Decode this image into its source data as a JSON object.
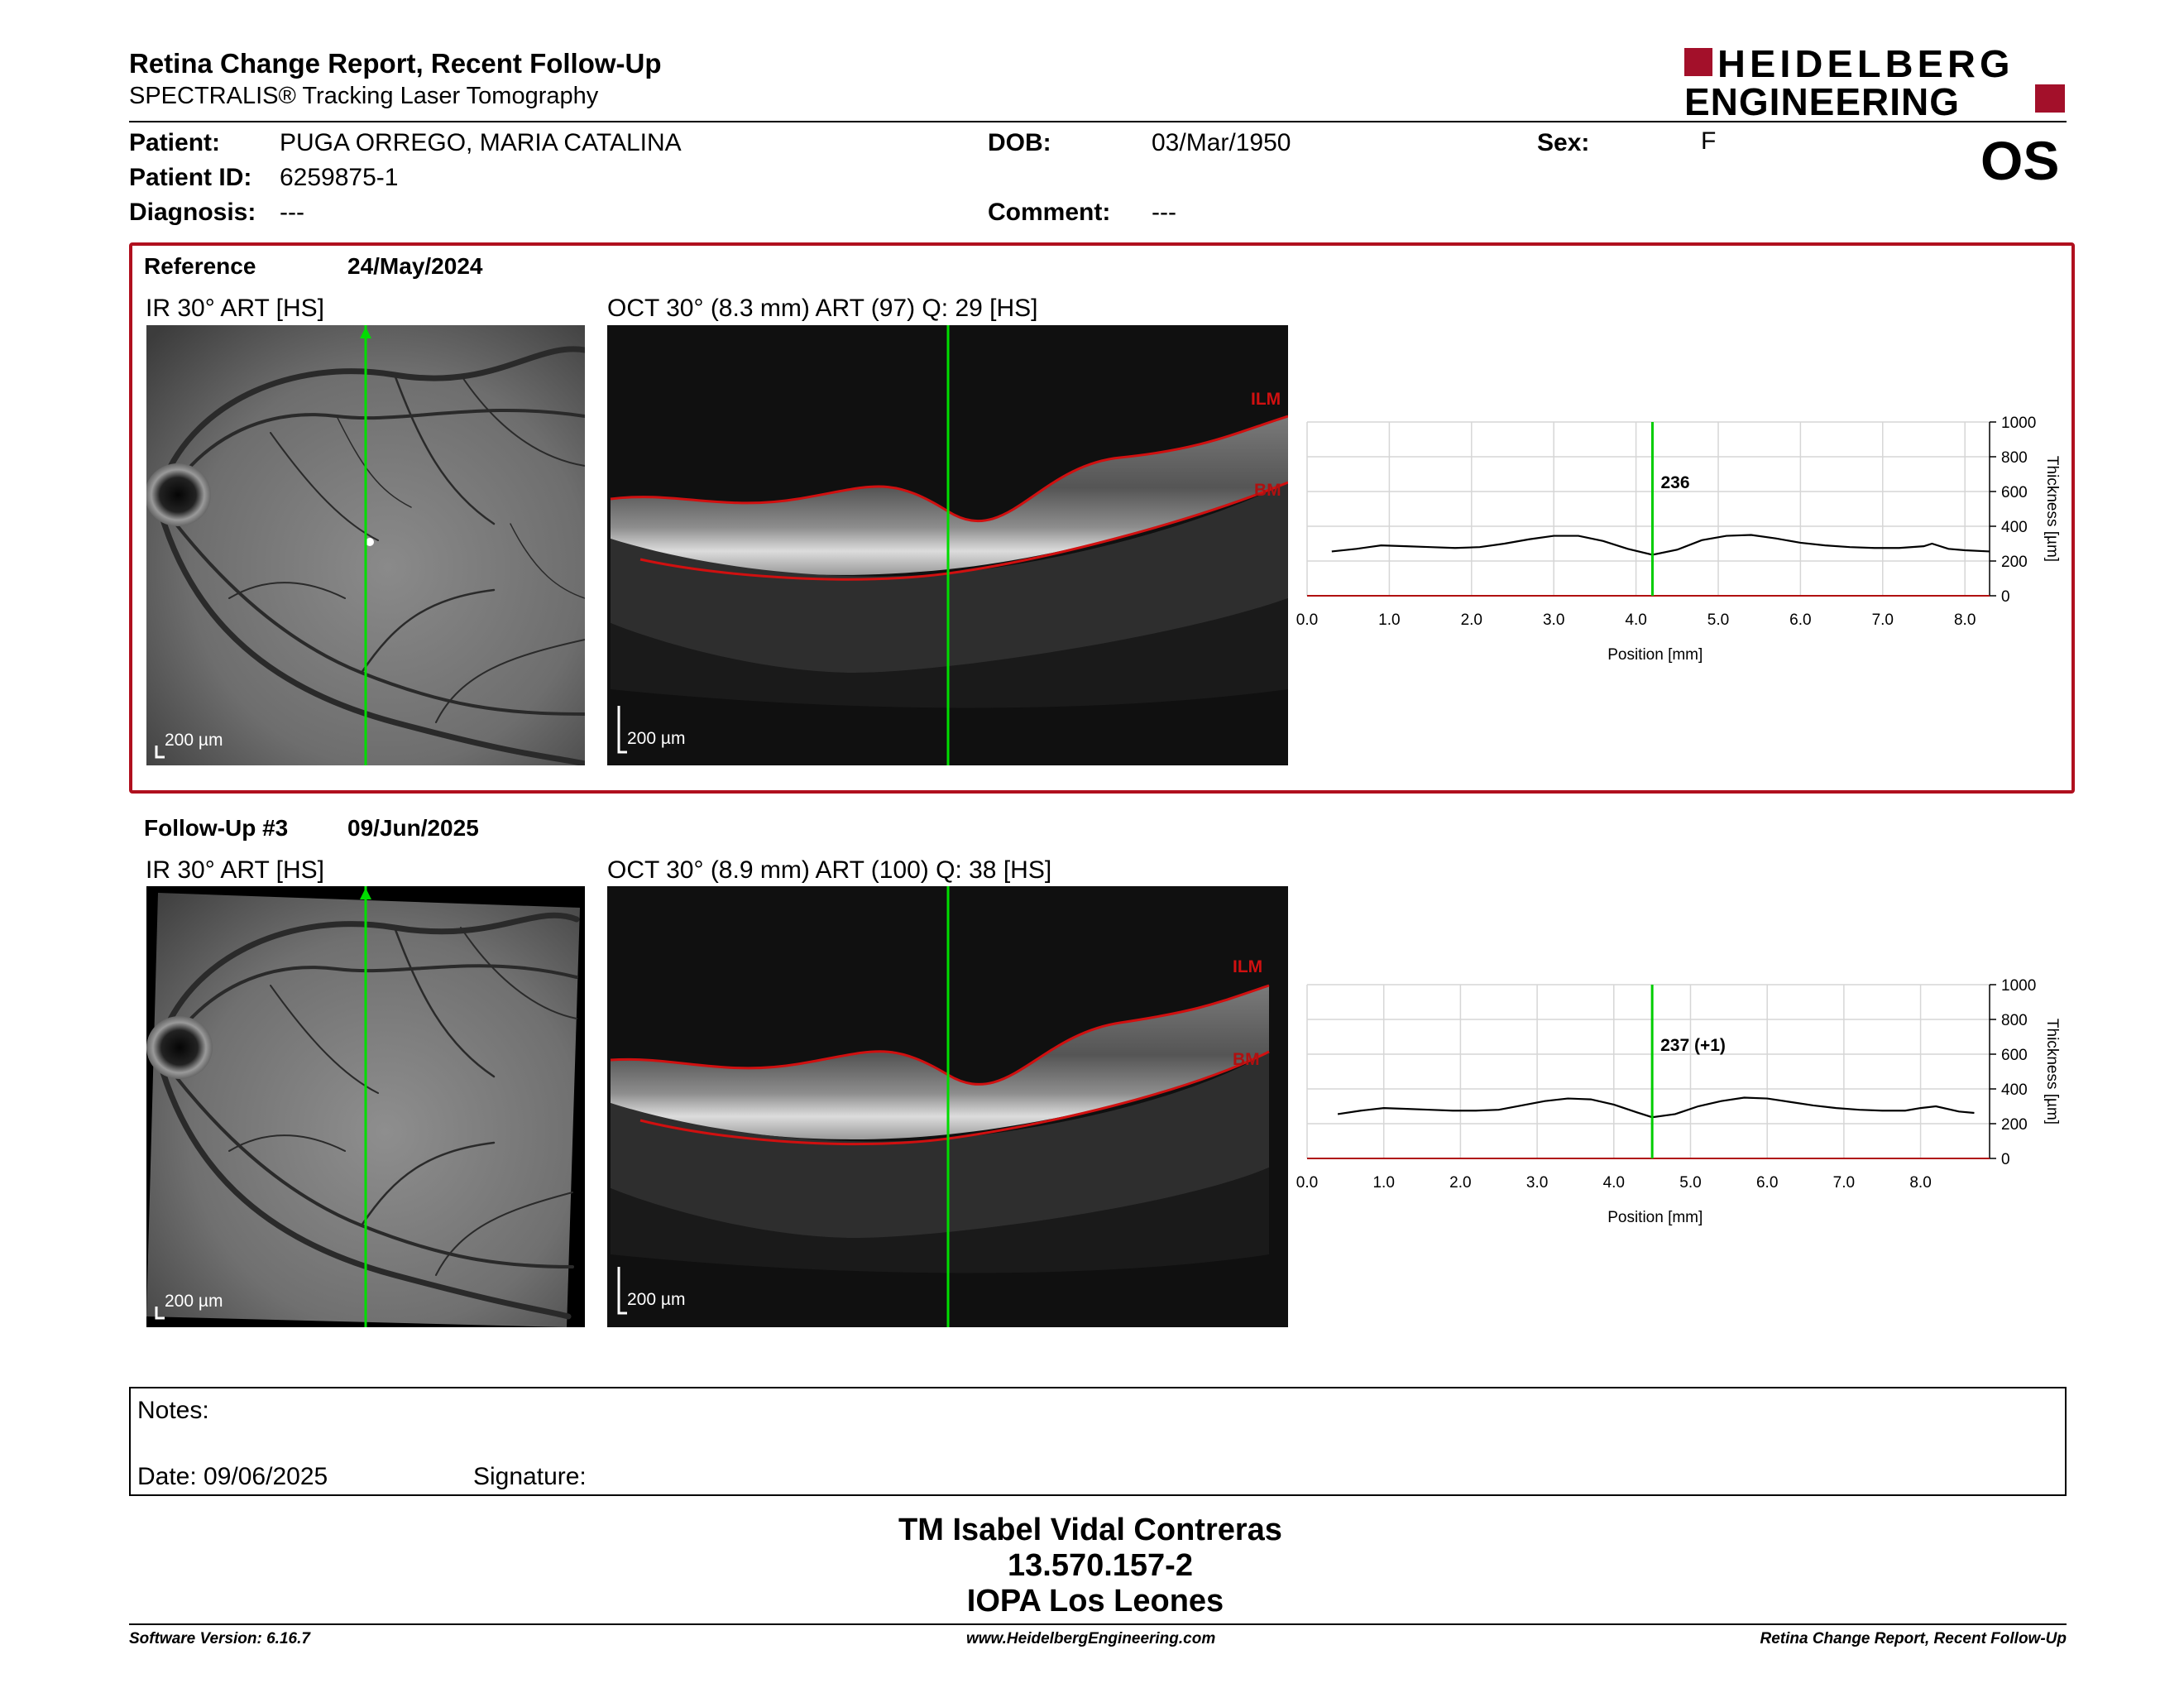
{
  "header": {
    "title": "Retina Change Report, Recent Follow-Up",
    "subtitle": "SPECTRALIS® Tracking Laser Tomography",
    "logo_line1": "HEIDELBERG",
    "logo_line2": "ENGINEERING",
    "eye": "OS"
  },
  "patient": {
    "name_label": "Patient:",
    "name": "PUGA ORREGO, MARIA CATALINA",
    "id_label": "Patient ID:",
    "id": "6259875-1",
    "diagnosis_label": "Diagnosis:",
    "diagnosis": "---",
    "dob_label": "DOB:",
    "dob": "03/Mar/1950",
    "comment_label": "Comment:",
    "comment": "---",
    "sex_label": "Sex:",
    "sex": "F"
  },
  "reference": {
    "label": "Reference",
    "date": "24/May/2024",
    "ir_title": "IR 30° ART [HS]",
    "oct_title": "OCT 30° (8.3 mm) ART (97) Q: 29 [HS]",
    "scale_ir": "200 µm",
    "scale_oct": "200 µm",
    "ilm": "ILM",
    "bm": "BM"
  },
  "followup": {
    "label": "Follow-Up #3",
    "date": "09/Jun/2025",
    "ir_title": "IR 30° ART [HS]",
    "oct_title": "OCT 30° (8.9 mm) ART (100) Q: 38 [HS]",
    "scale_ir": "200 µm",
    "scale_oct": "200 µm",
    "ilm": "ILM",
    "bm": "BM"
  },
  "chart_data": [
    {
      "type": "line",
      "xlabel": "Position [mm]",
      "ylabel": "Thickness [µm]",
      "xlim": [
        0,
        8.3
      ],
      "ylim": [
        0,
        1000
      ],
      "x_ticks": [
        "0.0",
        "1.0",
        "2.0",
        "3.0",
        "4.0",
        "5.0",
        "6.0",
        "7.0",
        "8.0"
      ],
      "y_ticks": [
        "0",
        "200",
        "400",
        "600",
        "800",
        "1000"
      ],
      "cursor_x": 4.2,
      "cursor_label": "236",
      "cursor_color": "#00cc00",
      "grid": true,
      "x": [
        0.3,
        0.6,
        0.9,
        1.2,
        1.5,
        1.8,
        2.1,
        2.4,
        2.7,
        3.0,
        3.3,
        3.6,
        3.9,
        4.2,
        4.5,
        4.8,
        5.1,
        5.4,
        5.7,
        6.0,
        6.3,
        6.6,
        6.9,
        7.2,
        7.5,
        7.6,
        7.8,
        8.0,
        8.3
      ],
      "y": [
        255,
        270,
        290,
        285,
        280,
        275,
        280,
        300,
        325,
        345,
        345,
        315,
        270,
        236,
        265,
        320,
        345,
        350,
        330,
        305,
        290,
        280,
        275,
        275,
        285,
        300,
        270,
        262,
        255
      ]
    },
    {
      "type": "line",
      "xlabel": "Position [mm]",
      "ylabel": "Thickness [µm]",
      "xlim": [
        0,
        8.9
      ],
      "ylim": [
        0,
        1000
      ],
      "x_ticks": [
        "0.0",
        "1.0",
        "2.0",
        "3.0",
        "4.0",
        "5.0",
        "6.0",
        "7.0",
        "8.0"
      ],
      "y_ticks": [
        "0",
        "200",
        "400",
        "600",
        "800",
        "1000"
      ],
      "cursor_x": 4.5,
      "cursor_label": "237 (+1)",
      "cursor_color": "#00cc00",
      "grid": true,
      "x": [
        0.4,
        0.7,
        1.0,
        1.3,
        1.6,
        1.9,
        2.2,
        2.5,
        2.8,
        3.1,
        3.4,
        3.7,
        4.0,
        4.3,
        4.5,
        4.8,
        5.1,
        5.4,
        5.7,
        6.0,
        6.3,
        6.6,
        6.9,
        7.2,
        7.5,
        7.8,
        8.0,
        8.2,
        8.5,
        8.7
      ],
      "y": [
        255,
        275,
        290,
        285,
        280,
        275,
        275,
        280,
        305,
        330,
        345,
        340,
        310,
        265,
        237,
        255,
        300,
        330,
        350,
        345,
        325,
        305,
        290,
        280,
        275,
        275,
        290,
        300,
        270,
        262
      ]
    }
  ],
  "notes": {
    "label": "Notes:",
    "date_label": "Date: 09/06/2025",
    "signature_label": "Signature:"
  },
  "signer": {
    "name": "TM Isabel Vidal Contreras",
    "rut": "13.570.157-2",
    "institution": "IOPA Los Leones"
  },
  "footer": {
    "software": "Software Version: 6.16.7",
    "website": "www.HeidelbergEngineering.com",
    "report": "Retina Change Report, Recent Follow-Up"
  },
  "colors": {
    "brand_red": "#a3102a",
    "frame_red": "#b0101e",
    "cursor_green": "#00dd00",
    "segmentation_red": "#d01010"
  }
}
